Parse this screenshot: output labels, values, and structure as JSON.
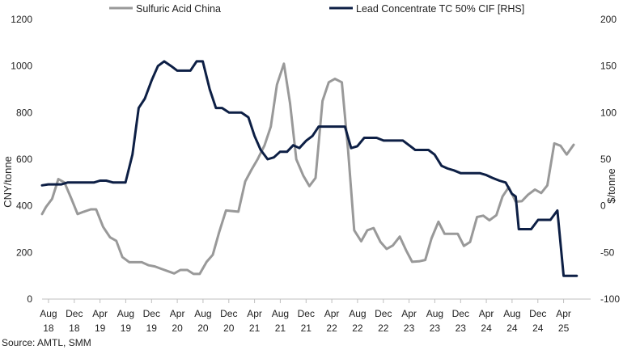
{
  "chart_data": {
    "type": "line",
    "title": "",
    "ylabel_left": "CNY/tonne",
    "ylabel_right": "$/tonne",
    "ylim_left": [
      0,
      1200
    ],
    "ylim_right": [
      -100,
      200
    ],
    "yticks_left": [
      "0",
      "200",
      "400",
      "600",
      "800",
      "1000",
      "1200"
    ],
    "yticks_right": [
      "-100",
      "-50",
      "0",
      "50",
      "100",
      "150",
      "200"
    ],
    "x_range": [
      2018.5,
      2025.6
    ],
    "xticks": [
      {
        "top": "Aug",
        "bottom": "18",
        "x": 2018.583
      },
      {
        "top": "Dec",
        "bottom": "18",
        "x": 2018.917
      },
      {
        "top": "Apr",
        "bottom": "19",
        "x": 2019.25
      },
      {
        "top": "Aug",
        "bottom": "19",
        "x": 2019.583
      },
      {
        "top": "Dec",
        "bottom": "19",
        "x": 2019.917
      },
      {
        "top": "Apr",
        "bottom": "20",
        "x": 2020.25
      },
      {
        "top": "Aug",
        "bottom": "20",
        "x": 2020.583
      },
      {
        "top": "Dec",
        "bottom": "20",
        "x": 2020.917
      },
      {
        "top": "Apr",
        "bottom": "21",
        "x": 2021.25
      },
      {
        "top": "Aug",
        "bottom": "21",
        "x": 2021.583
      },
      {
        "top": "Dec",
        "bottom": "21",
        "x": 2021.917
      },
      {
        "top": "Apr",
        "bottom": "22",
        "x": 2022.25
      },
      {
        "top": "Aug",
        "bottom": "22",
        "x": 2022.583
      },
      {
        "top": "Dec",
        "bottom": "22",
        "x": 2022.917
      },
      {
        "top": "Apr",
        "bottom": "23",
        "x": 2023.25
      },
      {
        "top": "Aug",
        "bottom": "23",
        "x": 2023.583
      },
      {
        "top": "Dec",
        "bottom": "23",
        "x": 2023.917
      },
      {
        "top": "Apr",
        "bottom": "24",
        "x": 2024.25
      },
      {
        "top": "Aug",
        "bottom": "24",
        "x": 2024.583
      },
      {
        "top": "Dec",
        "bottom": "24",
        "x": 2024.917
      },
      {
        "top": "Apr",
        "bottom": "25",
        "x": 2025.25
      }
    ],
    "legend_position": "top",
    "grid": false,
    "series": [
      {
        "name": "Sulfuric Acid China",
        "axis": "left",
        "color": "#999999",
        "points": [
          [
            2018.5,
            365
          ],
          [
            2018.55,
            395
          ],
          [
            2018.63,
            430
          ],
          [
            2018.71,
            515
          ],
          [
            2018.79,
            500
          ],
          [
            2018.88,
            430
          ],
          [
            2018.96,
            365
          ],
          [
            2019.04,
            375
          ],
          [
            2019.13,
            385
          ],
          [
            2019.2,
            385
          ],
          [
            2019.29,
            310
          ],
          [
            2019.38,
            265
          ],
          [
            2019.46,
            250
          ],
          [
            2019.54,
            180
          ],
          [
            2019.63,
            158
          ],
          [
            2019.79,
            158
          ],
          [
            2019.88,
            145
          ],
          [
            2019.96,
            140
          ],
          [
            2020.04,
            130
          ],
          [
            2020.21,
            110
          ],
          [
            2020.29,
            125
          ],
          [
            2020.38,
            125
          ],
          [
            2020.46,
            108
          ],
          [
            2020.54,
            108
          ],
          [
            2020.63,
            160
          ],
          [
            2020.71,
            190
          ],
          [
            2020.79,
            285
          ],
          [
            2020.88,
            380
          ],
          [
            2021.04,
            375
          ],
          [
            2021.13,
            505
          ],
          [
            2021.21,
            555
          ],
          [
            2021.29,
            600
          ],
          [
            2021.38,
            660
          ],
          [
            2021.46,
            740
          ],
          [
            2021.54,
            920
          ],
          [
            2021.63,
            1010
          ],
          [
            2021.71,
            840
          ],
          [
            2021.79,
            600
          ],
          [
            2021.88,
            530
          ],
          [
            2021.96,
            485
          ],
          [
            2022.04,
            520
          ],
          [
            2022.13,
            850
          ],
          [
            2022.21,
            930
          ],
          [
            2022.29,
            945
          ],
          [
            2022.38,
            930
          ],
          [
            2022.46,
            640
          ],
          [
            2022.54,
            295
          ],
          [
            2022.63,
            248
          ],
          [
            2022.71,
            295
          ],
          [
            2022.79,
            305
          ],
          [
            2022.88,
            245
          ],
          [
            2022.96,
            215
          ],
          [
            2023.04,
            230
          ],
          [
            2023.13,
            268
          ],
          [
            2023.21,
            210
          ],
          [
            2023.29,
            160
          ],
          [
            2023.38,
            162
          ],
          [
            2023.46,
            168
          ],
          [
            2023.54,
            260
          ],
          [
            2023.63,
            332
          ],
          [
            2023.71,
            280
          ],
          [
            2023.88,
            280
          ],
          [
            2023.96,
            228
          ],
          [
            2024.04,
            245
          ],
          [
            2024.13,
            352
          ],
          [
            2024.21,
            358
          ],
          [
            2024.29,
            338
          ],
          [
            2024.38,
            360
          ],
          [
            2024.46,
            440
          ],
          [
            2024.54,
            480
          ],
          [
            2024.63,
            418
          ],
          [
            2024.71,
            420
          ],
          [
            2024.79,
            448
          ],
          [
            2024.88,
            470
          ],
          [
            2024.96,
            455
          ],
          [
            2025.04,
            488
          ],
          [
            2025.13,
            668
          ],
          [
            2025.21,
            658
          ],
          [
            2025.29,
            620
          ],
          [
            2025.38,
            662
          ]
        ]
      },
      {
        "name": "Lead Concentrate TC 50% CIF [RHS]",
        "axis": "right",
        "color": "#0d1f45",
        "points": [
          [
            2018.5,
            22
          ],
          [
            2018.58,
            23
          ],
          [
            2018.67,
            23
          ],
          [
            2018.75,
            23
          ],
          [
            2018.83,
            25
          ],
          [
            2018.92,
            25
          ],
          [
            2019.0,
            25
          ],
          [
            2019.08,
            25
          ],
          [
            2019.17,
            25
          ],
          [
            2019.25,
            27
          ],
          [
            2019.33,
            27
          ],
          [
            2019.42,
            25
          ],
          [
            2019.5,
            25
          ],
          [
            2019.58,
            25
          ],
          [
            2019.67,
            55
          ],
          [
            2019.75,
            105
          ],
          [
            2019.83,
            115
          ],
          [
            2019.92,
            135
          ],
          [
            2020.0,
            150
          ],
          [
            2020.08,
            155
          ],
          [
            2020.17,
            150
          ],
          [
            2020.25,
            145
          ],
          [
            2020.33,
            145
          ],
          [
            2020.42,
            145
          ],
          [
            2020.5,
            155
          ],
          [
            2020.58,
            155
          ],
          [
            2020.67,
            125
          ],
          [
            2020.75,
            105
          ],
          [
            2020.83,
            105
          ],
          [
            2020.92,
            100
          ],
          [
            2021.0,
            100
          ],
          [
            2021.08,
            100
          ],
          [
            2021.17,
            95
          ],
          [
            2021.25,
            75
          ],
          [
            2021.33,
            60
          ],
          [
            2021.42,
            50
          ],
          [
            2021.5,
            52
          ],
          [
            2021.58,
            58
          ],
          [
            2021.67,
            58
          ],
          [
            2021.75,
            65
          ],
          [
            2021.83,
            62
          ],
          [
            2021.92,
            70
          ],
          [
            2022.0,
            75
          ],
          [
            2022.08,
            85
          ],
          [
            2022.17,
            85
          ],
          [
            2022.25,
            85
          ],
          [
            2022.33,
            85
          ],
          [
            2022.42,
            85
          ],
          [
            2022.5,
            62
          ],
          [
            2022.58,
            64
          ],
          [
            2022.67,
            73
          ],
          [
            2022.75,
            73
          ],
          [
            2022.83,
            73
          ],
          [
            2022.92,
            70
          ],
          [
            2023.0,
            70
          ],
          [
            2023.08,
            70
          ],
          [
            2023.17,
            70
          ],
          [
            2023.25,
            65
          ],
          [
            2023.33,
            60
          ],
          [
            2023.42,
            60
          ],
          [
            2023.5,
            60
          ],
          [
            2023.58,
            55
          ],
          [
            2023.67,
            43
          ],
          [
            2023.75,
            40
          ],
          [
            2023.83,
            38
          ],
          [
            2023.92,
            35
          ],
          [
            2024.0,
            35
          ],
          [
            2024.08,
            35
          ],
          [
            2024.17,
            35
          ],
          [
            2024.25,
            33
          ],
          [
            2024.33,
            30
          ],
          [
            2024.42,
            27
          ],
          [
            2024.5,
            25
          ],
          [
            2024.58,
            13
          ],
          [
            2024.63,
            10
          ],
          [
            2024.67,
            -25
          ],
          [
            2024.75,
            -25
          ],
          [
            2024.83,
            -25
          ],
          [
            2024.92,
            -15
          ],
          [
            2025.0,
            -15
          ],
          [
            2025.08,
            -15
          ],
          [
            2025.17,
            -5
          ],
          [
            2025.25,
            -75
          ],
          [
            2025.33,
            -75
          ],
          [
            2025.42,
            -75
          ]
        ]
      }
    ],
    "source": "Source: AMTL, SMM"
  }
}
